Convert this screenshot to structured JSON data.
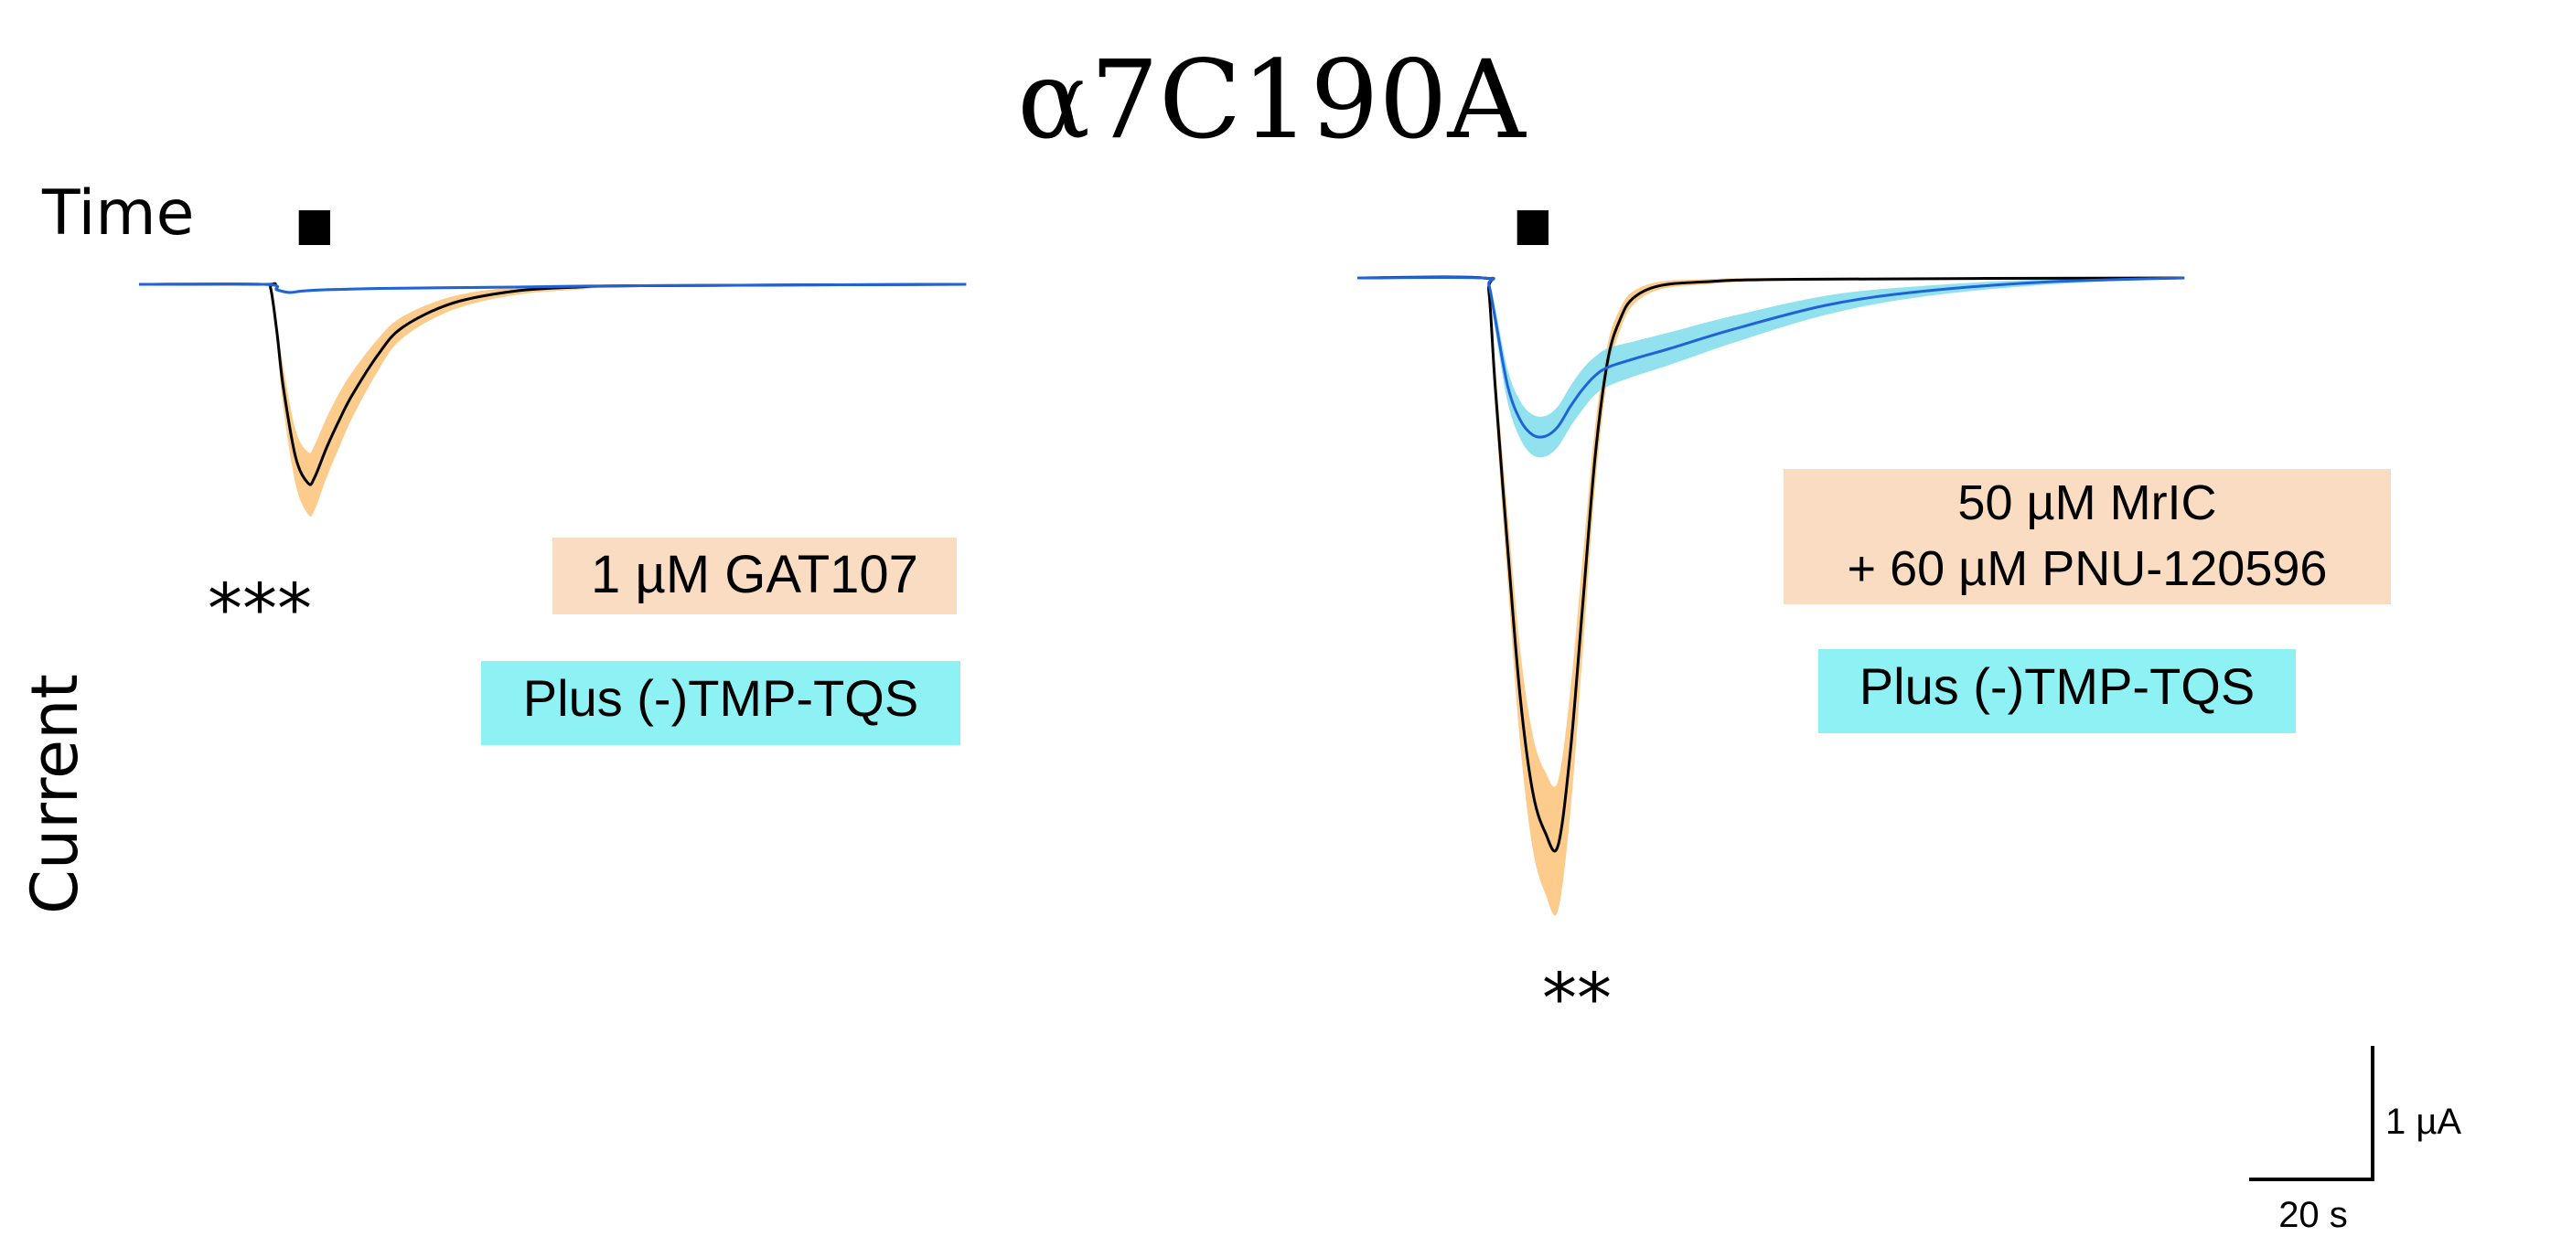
{
  "chart_data": {
    "type": "line",
    "title": "α7C190A",
    "xlabel": "Time",
    "ylabel": "Current",
    "scale_bar": {
      "time_label": "20 s",
      "current_label": "1 µA",
      "time_s": 20,
      "current_uA": 1
    },
    "x_unit": "s",
    "y_unit": "µA",
    "colors": {
      "orange_band": "#FDCB8B",
      "cyan_band": "#7FDCEB",
      "control_line": "#000000",
      "treated_line": "#1E63D8",
      "orange_label_bg": "#FADCC3",
      "cyan_label_bg": "#8EF2F5",
      "application_bar": "#000000"
    },
    "panels": [
      {
        "id": "left",
        "significance": "***",
        "labels": {
          "orange": [
            "1 µM GAT107"
          ],
          "cyan": [
            "Plus (-)TMP-TQS"
          ]
        },
        "application": {
          "start_s": 5.5,
          "end_s": 10.5
        },
        "x_range": [
          -20,
          112
        ],
        "series": [
          {
            "name": "1 µM GAT107",
            "color": "black",
            "band_color": "orange",
            "t": [
              -20,
              0,
              1,
              2,
              3,
              5,
              7,
              8,
              10,
              12,
              14,
              18,
              22,
              30,
              40,
              50,
              60,
              112
            ],
            "mean": [
              0,
              0,
              -0.03,
              -0.35,
              -0.75,
              -1.28,
              -1.47,
              -1.43,
              -1.2,
              -1.0,
              -0.82,
              -0.53,
              -0.32,
              -0.14,
              -0.05,
              -0.02,
              -0.01,
              0
            ],
            "sem": [
              0,
              0,
              0.01,
              0.07,
              0.15,
              0.2,
              0.23,
              0.24,
              0.22,
              0.2,
              0.17,
              0.12,
              0.08,
              0.05,
              0.03,
              0.02,
              0.01,
              0
            ]
          },
          {
            "name": "Plus (-)TMP-TQS",
            "color": "blue",
            "band_color": "cyan",
            "t": [
              -20,
              0,
              2,
              4,
              6,
              10,
              20,
              40,
              60,
              112
            ],
            "mean": [
              0,
              0,
              -0.04,
              -0.06,
              -0.05,
              -0.04,
              -0.03,
              -0.02,
              -0.01,
              0
            ],
            "sem": [
              0,
              0,
              0.01,
              0.01,
              0.01,
              0.01,
              0.01,
              0.01,
              0,
              0
            ]
          }
        ]
      },
      {
        "id": "right",
        "significance": "**",
        "labels": {
          "orange": [
            "50 µM MrIC",
            "+ 60 µM PNU-120596"
          ],
          "cyan": [
            "Plus (-)TMP-TQS"
          ]
        },
        "application": {
          "start_s": 5.5,
          "end_s": 10.5
        },
        "x_range": [
          -20,
          112
        ],
        "series": [
          {
            "name": "50 µM MrIC + 60 µM PNU-120596",
            "color": "black",
            "band_color": "orange",
            "t": [
              -20,
              0,
              1,
              2,
              4,
              6,
              8,
              10,
              12,
              14,
              16,
              18,
              20,
              22,
              24,
              28,
              35,
              50,
              112
            ],
            "mean": [
              0,
              0,
              -0.1,
              -0.8,
              -2.0,
              -3.1,
              -3.8,
              -4.1,
              -4.2,
              -3.5,
              -2.4,
              -1.3,
              -0.6,
              -0.3,
              -0.15,
              -0.06,
              -0.03,
              -0.01,
              0
            ],
            "sem": [
              0,
              0,
              0.05,
              0.15,
              0.25,
              0.35,
              0.42,
              0.45,
              0.48,
              0.45,
              0.35,
              0.22,
              0.12,
              0.08,
              0.05,
              0.03,
              0.02,
              0.01,
              0
            ]
          },
          {
            "name": "Plus (-)TMP-TQS",
            "color": "blue",
            "band_color": "cyan",
            "t": [
              -20,
              0,
              1,
              2,
              4,
              6,
              8,
              10,
              12,
              14,
              16,
              18,
              20,
              24,
              30,
              40,
              55,
              70,
              90,
              112
            ],
            "mean": [
              0,
              0,
              -0.05,
              -0.3,
              -0.8,
              -1.05,
              -1.16,
              -1.17,
              -1.1,
              -0.95,
              -0.82,
              -0.72,
              -0.66,
              -0.6,
              -0.52,
              -0.38,
              -0.2,
              -0.1,
              -0.03,
              0
            ],
            "sem": [
              0,
              0,
              0.02,
              0.08,
              0.12,
              0.14,
              0.15,
              0.15,
              0.15,
              0.15,
              0.15,
              0.14,
              0.14,
              0.13,
              0.12,
              0.1,
              0.07,
              0.04,
              0.02,
              0
            ]
          }
        ]
      }
    ]
  }
}
